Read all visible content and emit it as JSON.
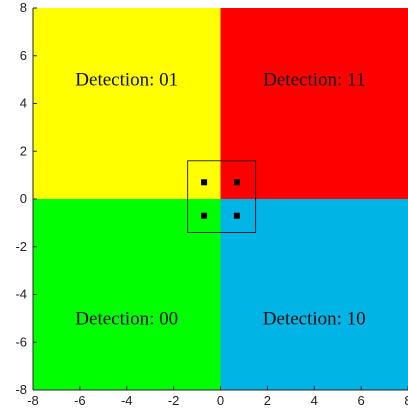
{
  "chart_data": {
    "type": "heatmap",
    "title": "",
    "xlabel": "",
    "ylabel": "",
    "xlim": [
      -8,
      8
    ],
    "ylim": [
      -8,
      8
    ],
    "x_ticks": [
      -8,
      -6,
      -4,
      -2,
      0,
      2,
      4,
      6,
      8
    ],
    "y_ticks": [
      -8,
      -6,
      -4,
      -2,
      0,
      2,
      4,
      6,
      8
    ],
    "regions": [
      {
        "label": "Detection: 01",
        "x_range": [
          -8,
          0
        ],
        "y_range": [
          0,
          8
        ],
        "color": "#FFFF00",
        "label_at": [
          -4,
          5
        ]
      },
      {
        "label": "Detection: 11",
        "x_range": [
          0,
          8
        ],
        "y_range": [
          0,
          8
        ],
        "color": "#FF0000",
        "label_at": [
          4,
          5
        ]
      },
      {
        "label": "Detection: 00",
        "x_range": [
          -8,
          0
        ],
        "y_range": [
          -8,
          0
        ],
        "color": "#00FF00",
        "label_at": [
          -4,
          -5
        ]
      },
      {
        "label": "Detection: 10",
        "x_range": [
          0,
          8
        ],
        "y_range": [
          -8,
          0
        ],
        "color": "#00B4E6",
        "label_at": [
          4,
          -5
        ]
      }
    ],
    "points": [
      {
        "x": -0.7,
        "y": 0.7
      },
      {
        "x": 0.7,
        "y": 0.7
      },
      {
        "x": -0.7,
        "y": -0.7
      },
      {
        "x": 0.7,
        "y": -0.7
      }
    ],
    "box": {
      "x": [
        -1.4,
        1.5
      ],
      "y": [
        -1.4,
        1.6
      ]
    },
    "grid": false,
    "legend": "none"
  }
}
